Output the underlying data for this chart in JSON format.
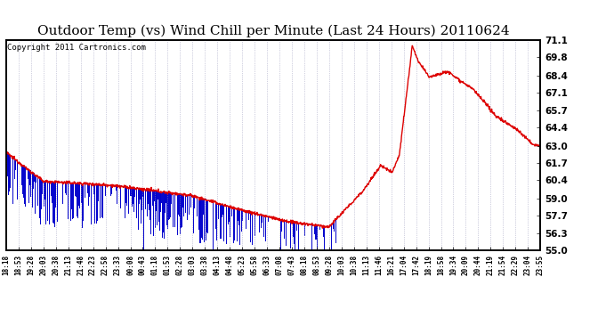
{
  "title": "Outdoor Temp (vs) Wind Chill per Minute (Last 24 Hours) 20110624",
  "copyright": "Copyright 2011 Cartronics.com",
  "ylabel_right_ticks": [
    71.1,
    69.8,
    68.4,
    67.1,
    65.7,
    64.4,
    63.0,
    61.7,
    60.4,
    59.0,
    57.7,
    56.3,
    55.0
  ],
  "ylim": [
    55.0,
    71.1
  ],
  "x_tick_labels": [
    "18:18",
    "18:53",
    "19:28",
    "20:03",
    "20:38",
    "21:13",
    "21:48",
    "22:23",
    "22:58",
    "23:33",
    "00:08",
    "00:43",
    "01:18",
    "01:53",
    "02:28",
    "03:03",
    "03:38",
    "04:13",
    "04:48",
    "05:23",
    "05:58",
    "06:33",
    "07:08",
    "07:43",
    "08:18",
    "08:53",
    "09:28",
    "10:03",
    "10:38",
    "11:13",
    "11:46",
    "16:21",
    "17:04",
    "17:42",
    "18:19",
    "18:58",
    "19:34",
    "20:09",
    "20:44",
    "21:19",
    "21:54",
    "22:29",
    "23:04",
    "23:55"
  ],
  "background_color": "#ffffff",
  "grid_color": "#9999bb",
  "outer_line_color": "#000000",
  "red_line_color": "#dd0000",
  "blue_bar_color": "#0000cc",
  "title_fontsize": 11,
  "copyright_fontsize": 6.5,
  "figsize": [
    6.9,
    3.75
  ],
  "dpi": 100
}
